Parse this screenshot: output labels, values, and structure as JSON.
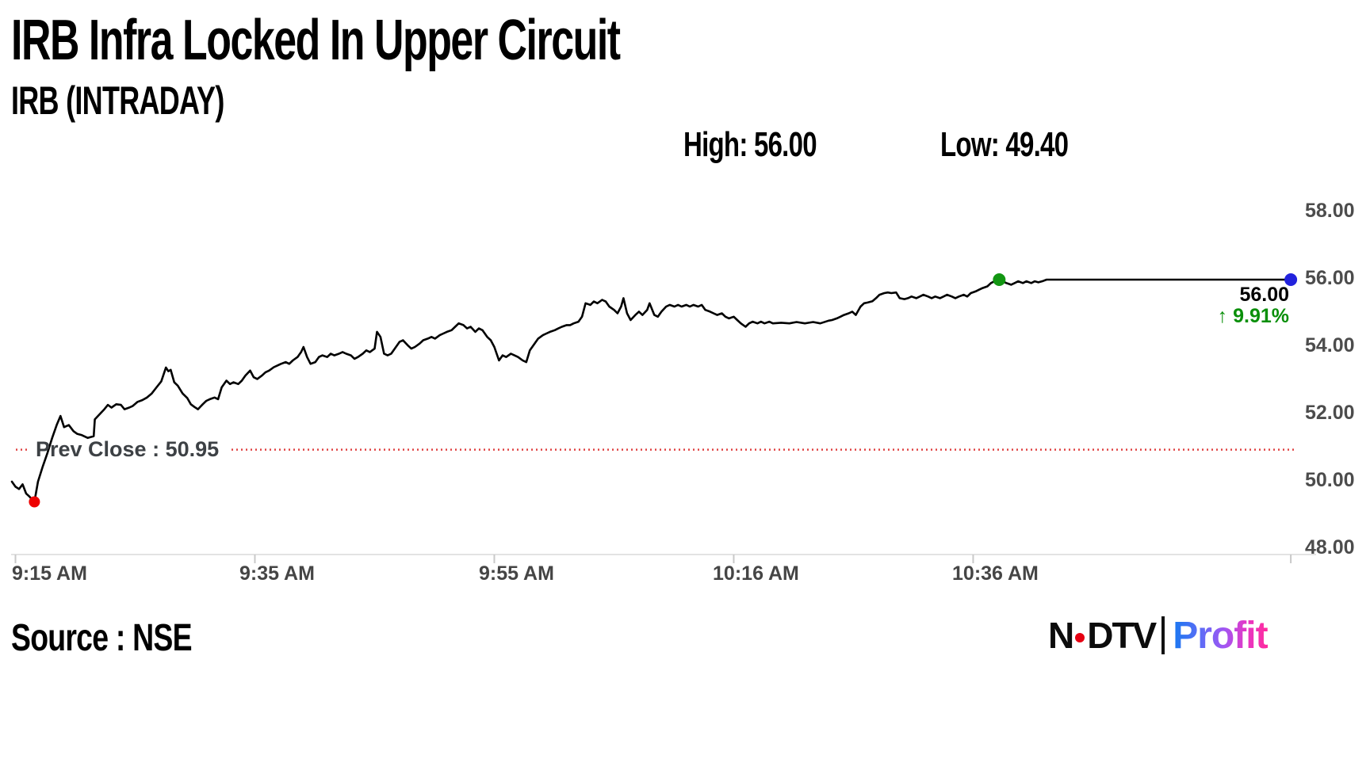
{
  "header": {
    "title": "IRB Infra Locked In Upper Circuit",
    "subtitle": "IRB (INTRADAY)",
    "high_label": "High: 56.00",
    "low_label": "Low: 49.40"
  },
  "footer": {
    "source": "Source : NSE",
    "logo": {
      "ndtv_n": "N",
      "ndtv_dtv": "DTV",
      "separator": "|",
      "profit": "Profit"
    }
  },
  "colors": {
    "line": "#000000",
    "prev_close_line": "#e04343",
    "low_marker": "#ee0000",
    "circuit_marker": "#129612",
    "last_marker": "#2222dd",
    "change_text": "#0a8f0a",
    "axis_line": "#e3e3e3",
    "tick": "#c9c9c9"
  },
  "chart_data": {
    "type": "line",
    "title": "IRB (INTRADAY)",
    "x_unit": "minutes since 9:15 AM",
    "y_unit": "price (INR)",
    "xlim": [
      0,
      107.9
    ],
    "ylim": [
      48,
      58
    ],
    "grid": false,
    "legend": null,
    "high": 56.0,
    "low": 49.4,
    "prev_close": 50.95,
    "prev_close_label": "Prev Close : 50.95",
    "last_price": "56.00",
    "change_arrow": "↑",
    "change_pct": "9.91%",
    "y_ticks": [
      {
        "value": 48,
        "label": "48.00"
      },
      {
        "value": 50,
        "label": "50.00"
      },
      {
        "value": 52,
        "label": "52.00"
      },
      {
        "value": 54,
        "label": "54.00"
      },
      {
        "value": 56,
        "label": "56.00"
      },
      {
        "value": 58,
        "label": "58.00"
      }
    ],
    "x_ticks": [
      {
        "t": 0.3,
        "label": "9:15 AM",
        "align": "left"
      },
      {
        "t": 20.5,
        "label": "9:35 AM"
      },
      {
        "t": 40.7,
        "label": "9:55 AM"
      },
      {
        "t": 60.9,
        "label": "10:16 AM"
      },
      {
        "t": 81.1,
        "label": "10:36 AM"
      },
      {
        "t": 107.9,
        "label": ""
      }
    ],
    "markers": [
      {
        "name": "low-marker",
        "t": 1.9,
        "price": 49.4,
        "color": "#ee0000",
        "r": 7
      },
      {
        "name": "circuit-marker",
        "t": 83.3,
        "price": 56.0,
        "color": "#129612",
        "r": 8
      },
      {
        "name": "last-marker",
        "t": 107.9,
        "price": 56.0,
        "color": "#2222dd",
        "r": 8
      }
    ],
    "points": [
      [
        0,
        50.0
      ],
      [
        0.3,
        49.85
      ],
      [
        0.6,
        49.78
      ],
      [
        0.9,
        49.92
      ],
      [
        1.2,
        49.65
      ],
      [
        1.5,
        49.55
      ],
      [
        1.9,
        49.4
      ],
      [
        2.2,
        50.0
      ],
      [
        2.6,
        50.45
      ],
      [
        3.0,
        50.85
      ],
      [
        3.4,
        51.3
      ],
      [
        3.8,
        51.7
      ],
      [
        4.1,
        51.95
      ],
      [
        4.4,
        51.62
      ],
      [
        4.8,
        51.68
      ],
      [
        5.2,
        51.5
      ],
      [
        5.5,
        51.42
      ],
      [
        5.9,
        51.38
      ],
      [
        6.4,
        51.3
      ],
      [
        6.9,
        51.35
      ],
      [
        7.0,
        51.85
      ],
      [
        7.4,
        52.0
      ],
      [
        7.8,
        52.15
      ],
      [
        8.1,
        52.28
      ],
      [
        8.4,
        52.2
      ],
      [
        8.8,
        52.3
      ],
      [
        9.2,
        52.28
      ],
      [
        9.5,
        52.15
      ],
      [
        9.9,
        52.2
      ],
      [
        10.2,
        52.25
      ],
      [
        10.6,
        52.37
      ],
      [
        11.0,
        52.42
      ],
      [
        11.4,
        52.5
      ],
      [
        11.8,
        52.62
      ],
      [
        12.2,
        52.8
      ],
      [
        12.6,
        52.98
      ],
      [
        13.0,
        53.39
      ],
      [
        13.2,
        53.28
      ],
      [
        13.4,
        53.32
      ],
      [
        13.7,
        52.95
      ],
      [
        14.0,
        52.85
      ],
      [
        14.4,
        52.62
      ],
      [
        14.8,
        52.48
      ],
      [
        15.1,
        52.3
      ],
      [
        15.4,
        52.22
      ],
      [
        15.7,
        52.15
      ],
      [
        16.1,
        52.3
      ],
      [
        16.4,
        52.4
      ],
      [
        16.7,
        52.45
      ],
      [
        17.1,
        52.5
      ],
      [
        17.4,
        52.45
      ],
      [
        17.7,
        52.8
      ],
      [
        18.1,
        53.0
      ],
      [
        18.4,
        52.9
      ],
      [
        18.7,
        52.95
      ],
      [
        19.1,
        52.9
      ],
      [
        19.4,
        53.0
      ],
      [
        19.7,
        53.15
      ],
      [
        20.1,
        53.3
      ],
      [
        20.4,
        53.1
      ],
      [
        20.7,
        53.05
      ],
      [
        21.1,
        53.15
      ],
      [
        21.4,
        53.25
      ],
      [
        21.7,
        53.3
      ],
      [
        22.1,
        53.4
      ],
      [
        22.4,
        53.45
      ],
      [
        22.7,
        53.5
      ],
      [
        23.1,
        53.55
      ],
      [
        23.4,
        53.5
      ],
      [
        23.7,
        53.6
      ],
      [
        24.1,
        53.7
      ],
      [
        24.4,
        53.85
      ],
      [
        24.6,
        54.0
      ],
      [
        24.9,
        53.7
      ],
      [
        25.2,
        53.5
      ],
      [
        25.6,
        53.55
      ],
      [
        25.9,
        53.7
      ],
      [
        26.2,
        53.75
      ],
      [
        26.6,
        53.7
      ],
      [
        26.9,
        53.8
      ],
      [
        27.2,
        53.75
      ],
      [
        27.6,
        53.8
      ],
      [
        27.9,
        53.85
      ],
      [
        28.2,
        53.8
      ],
      [
        28.6,
        53.75
      ],
      [
        28.9,
        53.65
      ],
      [
        29.2,
        53.7
      ],
      [
        29.6,
        53.8
      ],
      [
        29.9,
        53.9
      ],
      [
        30.2,
        53.85
      ],
      [
        30.6,
        53.95
      ],
      [
        30.8,
        54.45
      ],
      [
        31.1,
        54.3
      ],
      [
        31.4,
        53.8
      ],
      [
        31.7,
        53.75
      ],
      [
        32.0,
        53.8
      ],
      [
        32.4,
        54.0
      ],
      [
        32.7,
        54.15
      ],
      [
        33.0,
        54.2
      ],
      [
        33.4,
        54.05
      ],
      [
        33.7,
        53.95
      ],
      [
        34.0,
        54.0
      ],
      [
        34.4,
        54.1
      ],
      [
        34.7,
        54.2
      ],
      [
        35.1,
        54.25
      ],
      [
        35.4,
        54.3
      ],
      [
        35.7,
        54.25
      ],
      [
        36.1,
        54.35
      ],
      [
        36.4,
        54.4
      ],
      [
        36.7,
        54.45
      ],
      [
        37.1,
        54.5
      ],
      [
        37.4,
        54.6
      ],
      [
        37.7,
        54.7
      ],
      [
        38.1,
        54.65
      ],
      [
        38.4,
        54.55
      ],
      [
        38.7,
        54.6
      ],
      [
        39.1,
        54.45
      ],
      [
        39.4,
        54.55
      ],
      [
        39.7,
        54.5
      ],
      [
        40.1,
        54.3
      ],
      [
        40.4,
        54.2
      ],
      [
        40.7,
        54.0
      ],
      [
        41.1,
        53.6
      ],
      [
        41.4,
        53.75
      ],
      [
        41.7,
        53.7
      ],
      [
        42.1,
        53.8
      ],
      [
        42.4,
        53.75
      ],
      [
        42.7,
        53.7
      ],
      [
        43.1,
        53.6
      ],
      [
        43.4,
        53.55
      ],
      [
        43.7,
        53.9
      ],
      [
        44.1,
        54.1
      ],
      [
        44.4,
        54.25
      ],
      [
        44.8,
        54.35
      ],
      [
        45.1,
        54.4
      ],
      [
        45.4,
        54.45
      ],
      [
        45.8,
        54.5
      ],
      [
        46.1,
        54.55
      ],
      [
        46.4,
        54.6
      ],
      [
        46.8,
        54.65
      ],
      [
        47.1,
        54.65
      ],
      [
        47.4,
        54.7
      ],
      [
        47.8,
        54.75
      ],
      [
        48.1,
        54.9
      ],
      [
        48.4,
        55.3
      ],
      [
        48.8,
        55.25
      ],
      [
        49.1,
        55.35
      ],
      [
        49.4,
        55.3
      ],
      [
        49.8,
        55.4
      ],
      [
        50.1,
        55.35
      ],
      [
        50.4,
        55.2
      ],
      [
        50.8,
        55.1
      ],
      [
        51.1,
        55.0
      ],
      [
        51.4,
        55.2
      ],
      [
        51.6,
        55.45
      ],
      [
        51.9,
        55.0
      ],
      [
        52.2,
        54.8
      ],
      [
        52.6,
        54.95
      ],
      [
        52.9,
        55.05
      ],
      [
        53.2,
        54.95
      ],
      [
        53.6,
        55.1
      ],
      [
        53.8,
        55.3
      ],
      [
        54.2,
        54.95
      ],
      [
        54.5,
        54.9
      ],
      [
        54.8,
        55.05
      ],
      [
        55.2,
        55.2
      ],
      [
        55.5,
        55.25
      ],
      [
        55.9,
        55.2
      ],
      [
        56.2,
        55.25
      ],
      [
        56.5,
        55.2
      ],
      [
        56.9,
        55.25
      ],
      [
        57.2,
        55.2
      ],
      [
        57.5,
        55.25
      ],
      [
        57.9,
        55.2
      ],
      [
        58.2,
        55.25
      ],
      [
        58.5,
        55.1
      ],
      [
        58.9,
        55.05
      ],
      [
        59.2,
        55.0
      ],
      [
        59.5,
        54.95
      ],
      [
        59.9,
        55.0
      ],
      [
        60.2,
        54.9
      ],
      [
        60.5,
        54.85
      ],
      [
        60.9,
        54.9
      ],
      [
        61.2,
        54.8
      ],
      [
        61.5,
        54.7
      ],
      [
        61.9,
        54.6
      ],
      [
        62.2,
        54.7
      ],
      [
        62.5,
        54.75
      ],
      [
        62.9,
        54.7
      ],
      [
        63.2,
        54.75
      ],
      [
        63.5,
        54.7
      ],
      [
        63.9,
        54.75
      ],
      [
        64.2,
        54.7
      ],
      [
        64.9,
        54.72
      ],
      [
        65.6,
        54.7
      ],
      [
        66.2,
        54.74
      ],
      [
        66.9,
        54.7
      ],
      [
        67.6,
        54.74
      ],
      [
        68.2,
        54.7
      ],
      [
        68.9,
        54.78
      ],
      [
        69.2,
        54.8
      ],
      [
        69.6,
        54.85
      ],
      [
        69.9,
        54.9
      ],
      [
        70.2,
        54.95
      ],
      [
        70.6,
        55.0
      ],
      [
        70.9,
        55.05
      ],
      [
        71.2,
        54.95
      ],
      [
        71.6,
        55.2
      ],
      [
        71.9,
        55.3
      ],
      [
        72.2,
        55.32
      ],
      [
        72.6,
        55.36
      ],
      [
        72.9,
        55.45
      ],
      [
        73.2,
        55.55
      ],
      [
        73.6,
        55.6
      ],
      [
        73.9,
        55.62
      ],
      [
        74.2,
        55.6
      ],
      [
        74.6,
        55.62
      ],
      [
        74.9,
        55.45
      ],
      [
        75.3,
        55.42
      ],
      [
        75.6,
        55.45
      ],
      [
        75.9,
        55.5
      ],
      [
        76.3,
        55.45
      ],
      [
        76.6,
        55.5
      ],
      [
        76.9,
        55.55
      ],
      [
        77.3,
        55.5
      ],
      [
        77.6,
        55.45
      ],
      [
        77.9,
        55.5
      ],
      [
        78.3,
        55.45
      ],
      [
        78.6,
        55.5
      ],
      [
        78.9,
        55.55
      ],
      [
        79.3,
        55.5
      ],
      [
        79.6,
        55.45
      ],
      [
        79.9,
        55.5
      ],
      [
        80.3,
        55.55
      ],
      [
        80.6,
        55.5
      ],
      [
        80.9,
        55.6
      ],
      [
        81.3,
        55.65
      ],
      [
        81.6,
        55.7
      ],
      [
        81.9,
        55.75
      ],
      [
        82.3,
        55.8
      ],
      [
        82.6,
        55.9
      ],
      [
        82.9,
        55.95
      ],
      [
        83.3,
        56.0
      ],
      [
        83.6,
        55.95
      ],
      [
        83.9,
        55.9
      ],
      [
        84.3,
        55.85
      ],
      [
        84.6,
        55.9
      ],
      [
        84.9,
        55.95
      ],
      [
        85.3,
        55.9
      ],
      [
        85.6,
        55.95
      ],
      [
        86.0,
        55.9
      ],
      [
        86.3,
        55.95
      ],
      [
        86.6,
        55.92
      ],
      [
        87.0,
        55.96
      ],
      [
        87.3,
        56.0
      ],
      [
        107.9,
        56.0
      ]
    ]
  }
}
